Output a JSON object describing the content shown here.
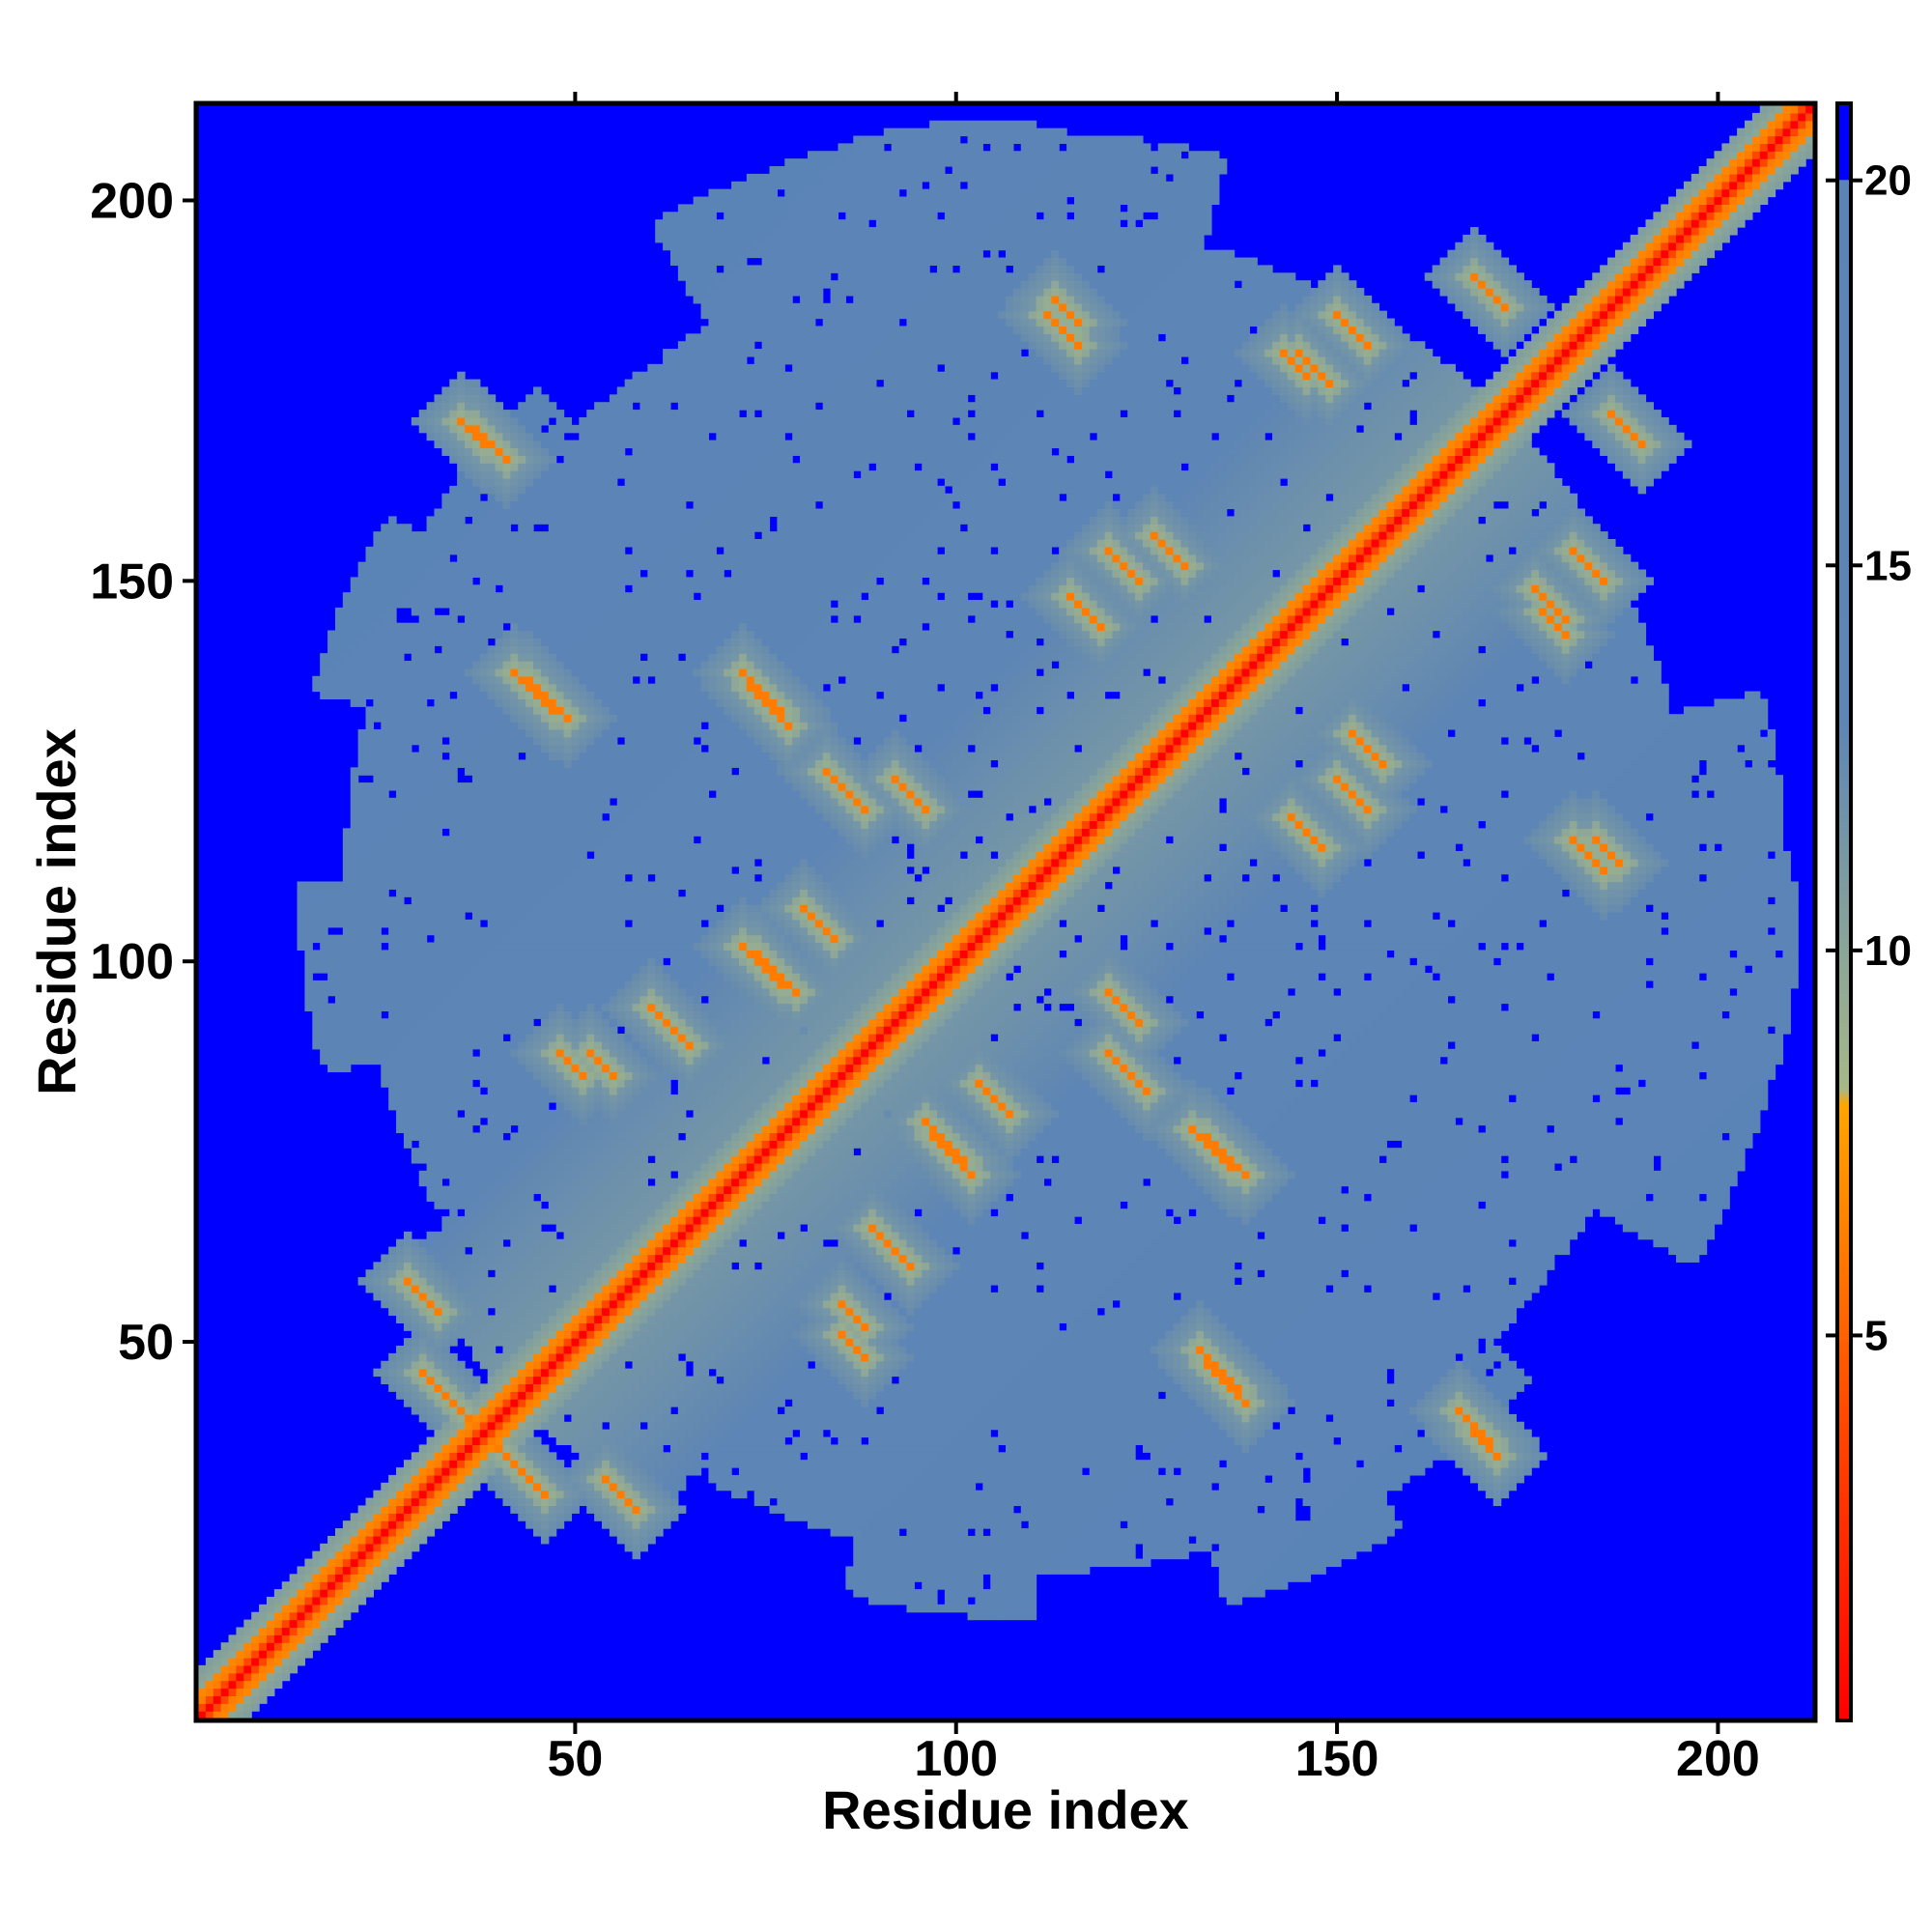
{
  "chart_data": {
    "type": "heatmap",
    "title": "",
    "xlabel": "Residue index",
    "ylabel": "Residue index",
    "n_residues": 212,
    "xlim": [
      1,
      212
    ],
    "ylim": [
      1,
      212
    ],
    "x_ticks": [
      50,
      100,
      150,
      200
    ],
    "y_ticks": [
      50,
      100,
      150,
      200
    ],
    "x_tick_labels": [
      "50",
      "100",
      "150",
      "200"
    ],
    "y_tick_labels": [
      "50",
      "100",
      "150",
      "200"
    ],
    "colorbar": {
      "range": [
        0,
        21
      ],
      "ticks": [
        5,
        10,
        15,
        20
      ],
      "tick_labels": [
        "5",
        "10",
        "15",
        "20"
      ],
      "color_stops": [
        {
          "value": 0,
          "color": "#ff0000"
        },
        {
          "value": 4,
          "color": "#ff4a00"
        },
        {
          "value": 8,
          "color": "#ffa500"
        },
        {
          "value": 8.2,
          "color": "#a6b888"
        },
        {
          "value": 13,
          "color": "#5d85b5"
        },
        {
          "value": 20,
          "color": "#5b84b6"
        },
        {
          "value": 20.01,
          "color": "#0000ff"
        },
        {
          "value": 21,
          "color": "#0000ff"
        }
      ]
    },
    "contact_segments": [
      {
        "i": 30,
        "j": 46,
        "len": 14,
        "direction": "anti"
      },
      {
        "i": 35,
        "j": 171,
        "len": 4,
        "direction": "anti"
      },
      {
        "i": 44,
        "j": 137,
        "len": 6,
        "direction": "anti"
      },
      {
        "i": 73,
        "j": 136,
        "len": 6,
        "direction": "anti"
      },
      {
        "i": 72,
        "j": 102,
        "len": 6,
        "direction": "anti"
      },
      {
        "i": 60,
        "j": 94,
        "len": 6,
        "direction": "anti"
      },
      {
        "i": 48,
        "j": 88,
        "len": 4,
        "direction": "anti"
      },
      {
        "i": 101,
        "j": 74,
        "len": 6,
        "direction": "anti"
      },
      {
        "i": 138,
        "j": 72,
        "len": 6,
        "direction": "anti"
      },
      {
        "i": 138,
        "j": 42,
        "len": 6,
        "direction": "anti"
      },
      {
        "i": 92,
        "j": 124,
        "len": 5,
        "direction": "anti"
      },
      {
        "i": 115,
        "j": 148,
        "len": 5,
        "direction": "anti"
      },
      {
        "i": 126,
        "j": 156,
        "len": 5,
        "direction": "anti"
      },
      {
        "i": 113,
        "j": 187,
        "len": 4,
        "direction": "anti"
      },
      {
        "i": 143,
        "j": 180,
        "len": 4,
        "direction": "anti"
      },
      {
        "i": 150,
        "j": 185,
        "len": 5,
        "direction": "anti"
      },
      {
        "i": 168,
        "j": 190,
        "len": 5,
        "direction": "anti"
      },
      {
        "i": 180,
        "j": 145,
        "len": 5,
        "direction": "anti"
      },
      {
        "i": 185,
        "j": 112,
        "len": 5,
        "direction": "anti"
      },
      {
        "i": 170,
        "j": 37,
        "len": 5,
        "direction": "anti"
      },
      {
        "i": 154,
        "j": 120,
        "len": 5,
        "direction": "anti"
      },
      {
        "i": 125,
        "j": 83,
        "len": 6,
        "direction": "anti"
      },
      {
        "i": 107,
        "j": 80,
        "len": 5,
        "direction": "anti"
      },
      {
        "i": 58,
        "j": 28,
        "len": 5,
        "direction": "anti"
      },
      {
        "i": 88,
        "j": 52,
        "len": 4,
        "direction": "anti"
      }
    ],
    "domain_core": {
      "center": [
        110,
        110
      ],
      "half_width": 98,
      "irregularity": 11
    }
  }
}
